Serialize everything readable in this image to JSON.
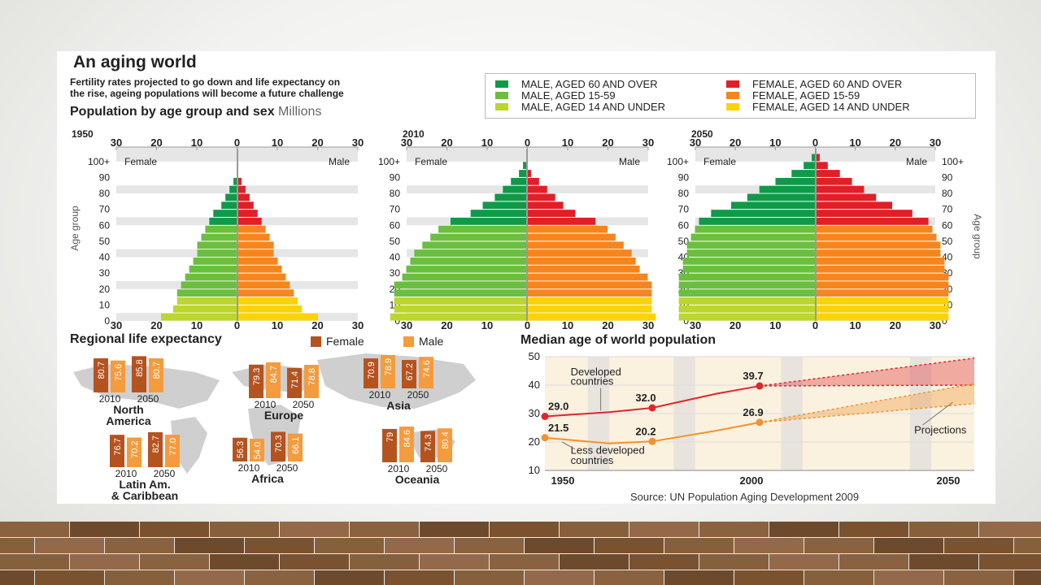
{
  "title": "An aging world",
  "subtitle_lines": [
    "Fertility rates projected to go down and life expectancy on",
    "the rise, ageing populations will become a future challenge"
  ],
  "source": "Source: UN Population Aging Development 2009",
  "legend": {
    "items": [
      {
        "label": "MALE, AGED 60 AND OVER",
        "color": "#0f9a48"
      },
      {
        "label": "MALE, AGED 15-59",
        "color": "#6abf3f"
      },
      {
        "label": "MALE, AGED 14 AND UNDER",
        "color": "#bcd62e"
      },
      {
        "label": "FEMALE, AGED 60 AND OVER",
        "color": "#e21e26"
      },
      {
        "label": "FEMALE, AGED 15-59",
        "color": "#f5861f"
      },
      {
        "label": "FEMALE, AGED 14 AND UNDER",
        "color": "#fcd20b"
      }
    ]
  },
  "chart_data": [
    {
      "type": "bar",
      "title": "Population by age group and sex",
      "unit": "Millions",
      "ylabel": "Age group",
      "side_labels": {
        "left": "Female",
        "right": "Male"
      },
      "categories": [
        "0",
        "5",
        "10",
        "15",
        "20",
        "25",
        "30",
        "35",
        "40",
        "45",
        "50",
        "55",
        "60",
        "65",
        "70",
        "75",
        "80",
        "85",
        "90",
        "95",
        "100+"
      ],
      "y_tick_labels": [
        "0",
        "10",
        "20",
        "30",
        "40",
        "50",
        "60",
        "70",
        "80",
        "90",
        "100+"
      ],
      "x_tick_labels": [
        "30",
        "20",
        "10",
        "0",
        "10",
        "20",
        "30"
      ],
      "xlim": [
        -30,
        30
      ],
      "panels": [
        {
          "year": "1950",
          "left": [
            19,
            16,
            15,
            15,
            14,
            13,
            12,
            11,
            10,
            10,
            9,
            8,
            7,
            6,
            4,
            3,
            2,
            1,
            0,
            0,
            0
          ],
          "right": [
            20,
            16,
            15,
            14,
            13,
            12,
            11,
            10,
            9,
            9,
            8,
            7,
            6,
            5,
            4,
            3,
            2,
            1,
            0,
            0,
            0
          ]
        },
        {
          "year": "2010",
          "left": [
            34,
            33,
            33,
            33,
            33,
            31,
            30,
            29,
            28,
            26,
            24,
            22,
            19,
            14,
            11,
            8,
            6,
            4,
            2,
            1,
            0
          ],
          "right": [
            32,
            31,
            31,
            31,
            31,
            30,
            28,
            27,
            26,
            24,
            22,
            20,
            17,
            12,
            9,
            7,
            5,
            3,
            1,
            0,
            0
          ]
        },
        {
          "year": "2050",
          "left": [
            34,
            34,
            34,
            34,
            34,
            34,
            33,
            33,
            32,
            32,
            31,
            30,
            29,
            26,
            21,
            17,
            14,
            10,
            6,
            3,
            1
          ],
          "right": [
            33,
            33,
            33,
            33,
            33,
            33,
            32,
            32,
            31,
            31,
            30,
            29,
            28,
            24,
            19,
            15,
            12,
            9,
            6,
            3,
            1
          ]
        }
      ]
    },
    {
      "type": "bar",
      "title": "Regional life expectancy",
      "series": [
        {
          "name": "Female",
          "color": "#b5531f"
        },
        {
          "name": "Male",
          "color": "#f49b3e"
        }
      ],
      "categories": [
        "2010",
        "2050"
      ],
      "regions": [
        {
          "name": [
            "North",
            "America"
          ],
          "values": [
            80.7,
            75.6,
            85.8,
            80.7
          ]
        },
        {
          "name": [
            "Europe"
          ],
          "values": [
            79.3,
            84.7,
            71.4,
            78.8
          ]
        },
        {
          "name": [
            "Asia"
          ],
          "values": [
            70.9,
            78.9,
            67.2,
            74.6
          ]
        },
        {
          "name": [
            "Latin Am.",
            "& Caribbean"
          ],
          "values": [
            76.7,
            70.2,
            82.7,
            77.0
          ]
        },
        {
          "name": [
            "Africa"
          ],
          "values": [
            56.3,
            54.0,
            70.3,
            66.1
          ]
        },
        {
          "name": [
            "Oceania"
          ],
          "values": [
            79,
            84.6,
            74.3,
            80.4
          ]
        }
      ],
      "value_labels": [
        [
          "80.7",
          "75.6",
          "85.8",
          "80.7"
        ],
        [
          "79.3",
          "84.7",
          "71.4",
          "78.8"
        ],
        [
          "70.9",
          "78.9",
          "67.2",
          "74.6"
        ],
        [
          "76.7",
          "70.2",
          "82.7",
          "77.0"
        ],
        [
          "56.3",
          "54.0",
          "70.3",
          "66.1"
        ],
        [
          "79",
          "84.6",
          "74.3",
          "80.4"
        ]
      ]
    },
    {
      "type": "line",
      "title": "Median age of world population",
      "xlim": [
        1950,
        2050
      ],
      "ylim": [
        10,
        50
      ],
      "y_ticks": [
        10,
        20,
        30,
        40,
        50
      ],
      "x_tick_labels": [
        "1950",
        "2000",
        "2050"
      ],
      "series": [
        {
          "name": "Developed countries",
          "color": "#e0262c",
          "x": [
            1950,
            1965,
            1975,
            1990,
            2000
          ],
          "y": [
            29.0,
            30.5,
            32.0,
            37.0,
            39.7
          ],
          "projection_x": [
            2000,
            2050
          ],
          "projection_high": [
            39.7,
            49.5
          ],
          "projection_low": [
            39.7,
            40.0
          ]
        },
        {
          "name": "Less developed countries",
          "color": "#f2922e",
          "x": [
            1950,
            1965,
            1975,
            1990,
            2000
          ],
          "y": [
            21.5,
            19.5,
            20.2,
            24.0,
            26.9
          ],
          "projection_x": [
            2000,
            2050
          ],
          "projection_high": [
            26.9,
            40.5
          ],
          "projection_low": [
            26.9,
            33.5
          ]
        }
      ],
      "point_labels": [
        {
          "x": 1950,
          "y": 29.0,
          "text": "29.0"
        },
        {
          "x": 1975,
          "y": 32.0,
          "text": "32.0"
        },
        {
          "x": 2000,
          "y": 39.7,
          "text": "39.7"
        },
        {
          "x": 1950,
          "y": 21.5,
          "text": "21.5"
        },
        {
          "x": 1975,
          "y": 20.2,
          "text": "20.2"
        },
        {
          "x": 2000,
          "y": 26.9,
          "text": "26.9"
        }
      ],
      "annotations": {
        "developed": [
          "Developed",
          "countries"
        ],
        "less_developed": [
          "Less developed",
          "countries"
        ],
        "projections": "Projections"
      }
    }
  ]
}
